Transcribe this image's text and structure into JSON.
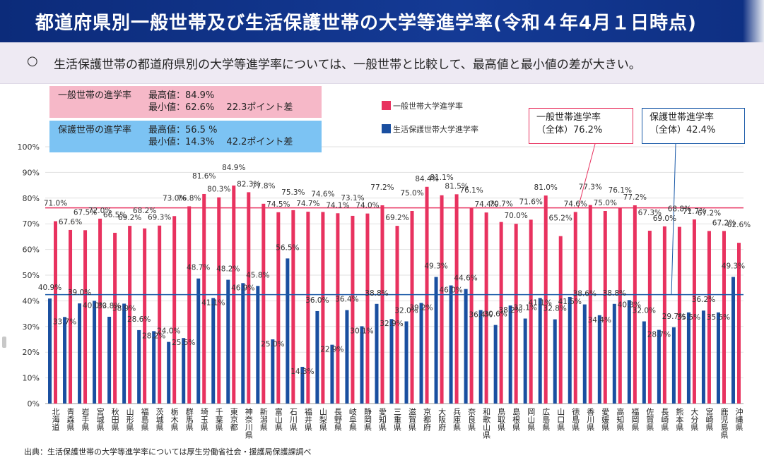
{
  "header": {
    "title": "都道府県別一般世帯及び生活保護世帯の大学等進学率(令和４年4月１日時点)"
  },
  "subtitle": {
    "bullet": "○",
    "text": "生活保護世帯の都道府県別の大学等進学率については、一般世帯と比較して、最高値と最小値の差が大きい。"
  },
  "info_boxes": {
    "general": {
      "label": "一般世帯の進学率",
      "line1": "最高値：84.9%",
      "line2": "最小値：62.6%　 22.3ポイント差"
    },
    "welfare": {
      "label": "保護世帯の進学率",
      "line1": "最高値：56.5 %",
      "line2": "最小値：14.3%　 42.2ポイント差"
    }
  },
  "callouts": {
    "general": {
      "line1": "一般世帯進学率",
      "line2": "（全体）76.2%"
    },
    "welfare": {
      "line1": "保護世帯進学率",
      "line2": "（全体）42.4%"
    }
  },
  "source": "出典：生活保護世帯の大学等進学率については厚生労働省社会・援護局保護課調べ",
  "colors": {
    "general": "#e8325f",
    "welfare": "#1a4fa0",
    "general_line": "#e8325f",
    "welfare_line": "#1a5aa8"
  },
  "chart_data": {
    "type": "bar",
    "title": "都道府県別一般世帯及び生活保護世帯の大学等進学率(令和４年4月１日時点)",
    "xlabel": "",
    "ylabel": "",
    "ylim": [
      0,
      100
    ],
    "yticks": [
      "0%",
      "10%",
      "20%",
      "30%",
      "40%",
      "50%",
      "60%",
      "70%",
      "80%",
      "90%",
      "100%"
    ],
    "legend_position": "top-right",
    "categories": [
      "北海道",
      "青森県",
      "岩手県",
      "宮城県",
      "秋田県",
      "山形県",
      "福島県",
      "茨城県",
      "栃木県",
      "群馬県",
      "埼玉県",
      "千葉県",
      "東京都",
      "神奈川県",
      "新潟県",
      "富山県",
      "石川県",
      "福井県",
      "山梨県",
      "長野県",
      "岐阜県",
      "静岡県",
      "愛知県",
      "三重県",
      "滋賀県",
      "京都府",
      "大阪府",
      "兵庫県",
      "奈良県",
      "和歌山県",
      "鳥取県",
      "島根県",
      "岡山県",
      "広島県",
      "山口県",
      "徳島県",
      "香川県",
      "愛媛県",
      "高知県",
      "福岡県",
      "佐賀県",
      "長崎県",
      "熊本県",
      "大分県",
      "宮崎県",
      "鹿児島県",
      "沖縄県"
    ],
    "series": [
      {
        "name": "一般世帯大学進学率",
        "values": [
          71.0,
          67.6,
          67.5,
          72.0,
          66.5,
          69.2,
          68.2,
          69.3,
          73.0,
          76.8,
          81.6,
          80.3,
          84.9,
          82.3,
          77.8,
          74.5,
          75.3,
          74.7,
          74.6,
          74.1,
          73.1,
          74.0,
          77.2,
          69.2,
          75.0,
          84.4,
          81.1,
          81.5,
          76.1,
          74.4,
          70.7,
          70.0,
          71.6,
          81.0,
          65.2,
          74.6,
          77.3,
          75.0,
          76.1,
          77.2,
          67.3,
          69.0,
          68.8,
          71.7,
          67.2,
          67.2,
          62.6
        ],
        "labels": [
          "71.0%",
          "67.6%",
          "67.5%",
          "72.0%",
          "66.5%",
          "69.2%",
          "68.2%",
          "69.3%",
          "73.0%",
          "76.8%",
          "81.6%",
          "80.3%",
          "84.9%",
          "82.3%",
          "77.8%",
          "74.5%",
          "75.3%",
          "74.7%",
          "74.6%",
          "74.1%",
          "73.1%",
          "74.0%",
          "77.2%",
          "69.2%",
          "75.0%",
          "84.4%",
          "81.1%",
          "81.5%",
          "76.1%",
          "74.4%",
          "70.7%",
          "70.0%",
          "71.6%",
          "81.0%",
          "65.2%",
          "74.6%",
          "77.3%",
          "75.0%",
          "76.1%",
          "77.2%",
          "67.3%",
          "69.0%",
          "68.8%",
          "71.7%",
          "67.2%",
          "67.2%",
          "62.6%"
        ]
      },
      {
        "name": "生活保護世帯大学進学率",
        "values": [
          40.9,
          33.7,
          39.0,
          40.0,
          33.8,
          38.9,
          28.6,
          28.2,
          24.0,
          25.5,
          48.7,
          41.1,
          48.2,
          46.9,
          45.8,
          25.0,
          56.5,
          14.3,
          36.0,
          22.9,
          36.4,
          30.1,
          38.8,
          32.9,
          32.0,
          39.2,
          49.3,
          46.0,
          44.6,
          36.4,
          30.6,
          38.2,
          33.1,
          41.1,
          32.8,
          41.5,
          38.6,
          34.4,
          38.8,
          40.3,
          32.0,
          28.7,
          29.7,
          35.5,
          36.2,
          35.5,
          49.3
        ],
        "labels": [
          "40.9%",
          "33.7%",
          "39.0%",
          "40.0%",
          "33.8%",
          "38.9%",
          "28.6%",
          "28.2%",
          "24.0%",
          "25.5%",
          "48.7%",
          "41.1%",
          "48.2%",
          "46.9%",
          "45.8%",
          "25.0%",
          "56.5%",
          "14.3%",
          "36.0%",
          "22.9%",
          "36.4%",
          "30.1%",
          "38.8%",
          "32.9%",
          "32.0%",
          "39.2%",
          "49.3%",
          "46.0%",
          "44.6%",
          "36.4%",
          "30.6%",
          "38.2%",
          "33.1%",
          "41.1%",
          "32.8%",
          "41.5%",
          "38.6%",
          "34.4%",
          "38.8%",
          "40.3%",
          "32.0%",
          "28.7%",
          "29.7%",
          "35.5%",
          "36.2%",
          "35.5%",
          "49.3%"
        ]
      }
    ],
    "reference_lines": [
      {
        "name": "一般世帯進学率（全体）",
        "value": 76.2
      },
      {
        "name": "保護世帯進学率（全体）",
        "value": 42.4
      }
    ]
  }
}
